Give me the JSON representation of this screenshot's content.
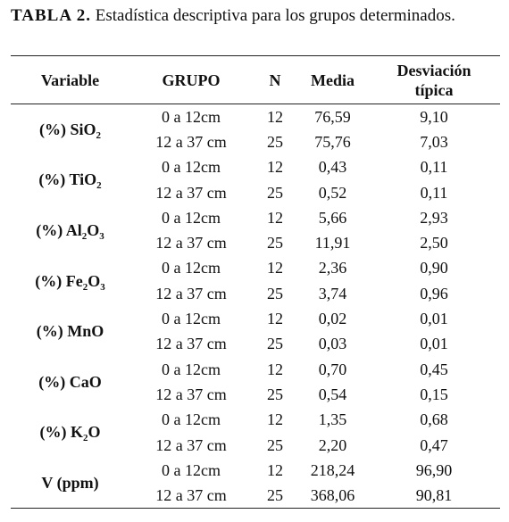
{
  "caption": {
    "label": "TABLA 2.",
    "text": "Estadística descriptiva para los grupos determinados."
  },
  "table": {
    "columns": [
      [
        "Variable"
      ],
      [
        "GRUPO"
      ],
      [
        "N"
      ],
      [
        "Media"
      ],
      [
        "Desviación",
        "típica"
      ]
    ],
    "rows": [
      {
        "variable": [
          "(%) SiO",
          "2"
        ],
        "groups": [
          [
            "0 a 12cm",
            "12",
            "76,59",
            "9,10"
          ],
          [
            "12 a 37 cm",
            "25",
            "75,76",
            "7,03"
          ]
        ]
      },
      {
        "variable": [
          "(%) TiO",
          "2"
        ],
        "groups": [
          [
            "0 a 12cm",
            "12",
            "0,43",
            "0,11"
          ],
          [
            "12 a 37 cm",
            "25",
            "0,52",
            "0,11"
          ]
        ]
      },
      {
        "variable": [
          "(%) Al",
          "2",
          "O",
          "3"
        ],
        "groups": [
          [
            "0 a 12cm",
            "12",
            "5,66",
            "2,93"
          ],
          [
            "12 a 37 cm",
            "25",
            "11,91",
            "2,50"
          ]
        ]
      },
      {
        "variable": [
          "(%) Fe",
          "2",
          "O",
          "3"
        ],
        "groups": [
          [
            "0 a 12cm",
            "12",
            "2,36",
            "0,90"
          ],
          [
            "12 a 37 cm",
            "25",
            "3,74",
            "0,96"
          ]
        ]
      },
      {
        "variable": [
          "(%) MnO"
        ],
        "groups": [
          [
            "0 a 12cm",
            "12",
            "0,02",
            "0,01"
          ],
          [
            "12 a 37 cm",
            "25",
            "0,03",
            "0,01"
          ]
        ]
      },
      {
        "variable": [
          "(%) CaO"
        ],
        "groups": [
          [
            "0 a 12cm",
            "12",
            "0,70",
            "0,45"
          ],
          [
            "12 a 37 cm",
            "25",
            "0,54",
            "0,15"
          ]
        ]
      },
      {
        "variable": [
          "(%) K",
          "2",
          "O"
        ],
        "groups": [
          [
            "0 a 12cm",
            "12",
            "1,35",
            "0,68"
          ],
          [
            "12 a 37 cm",
            "25",
            "2,20",
            "0,47"
          ]
        ]
      },
      {
        "variable": [
          "V (ppm)"
        ],
        "groups": [
          [
            "0 a 12cm",
            "12",
            "218,24",
            "96,90"
          ],
          [
            "12 a 37 cm",
            "25",
            "368,06",
            "90,81"
          ]
        ]
      }
    ]
  }
}
